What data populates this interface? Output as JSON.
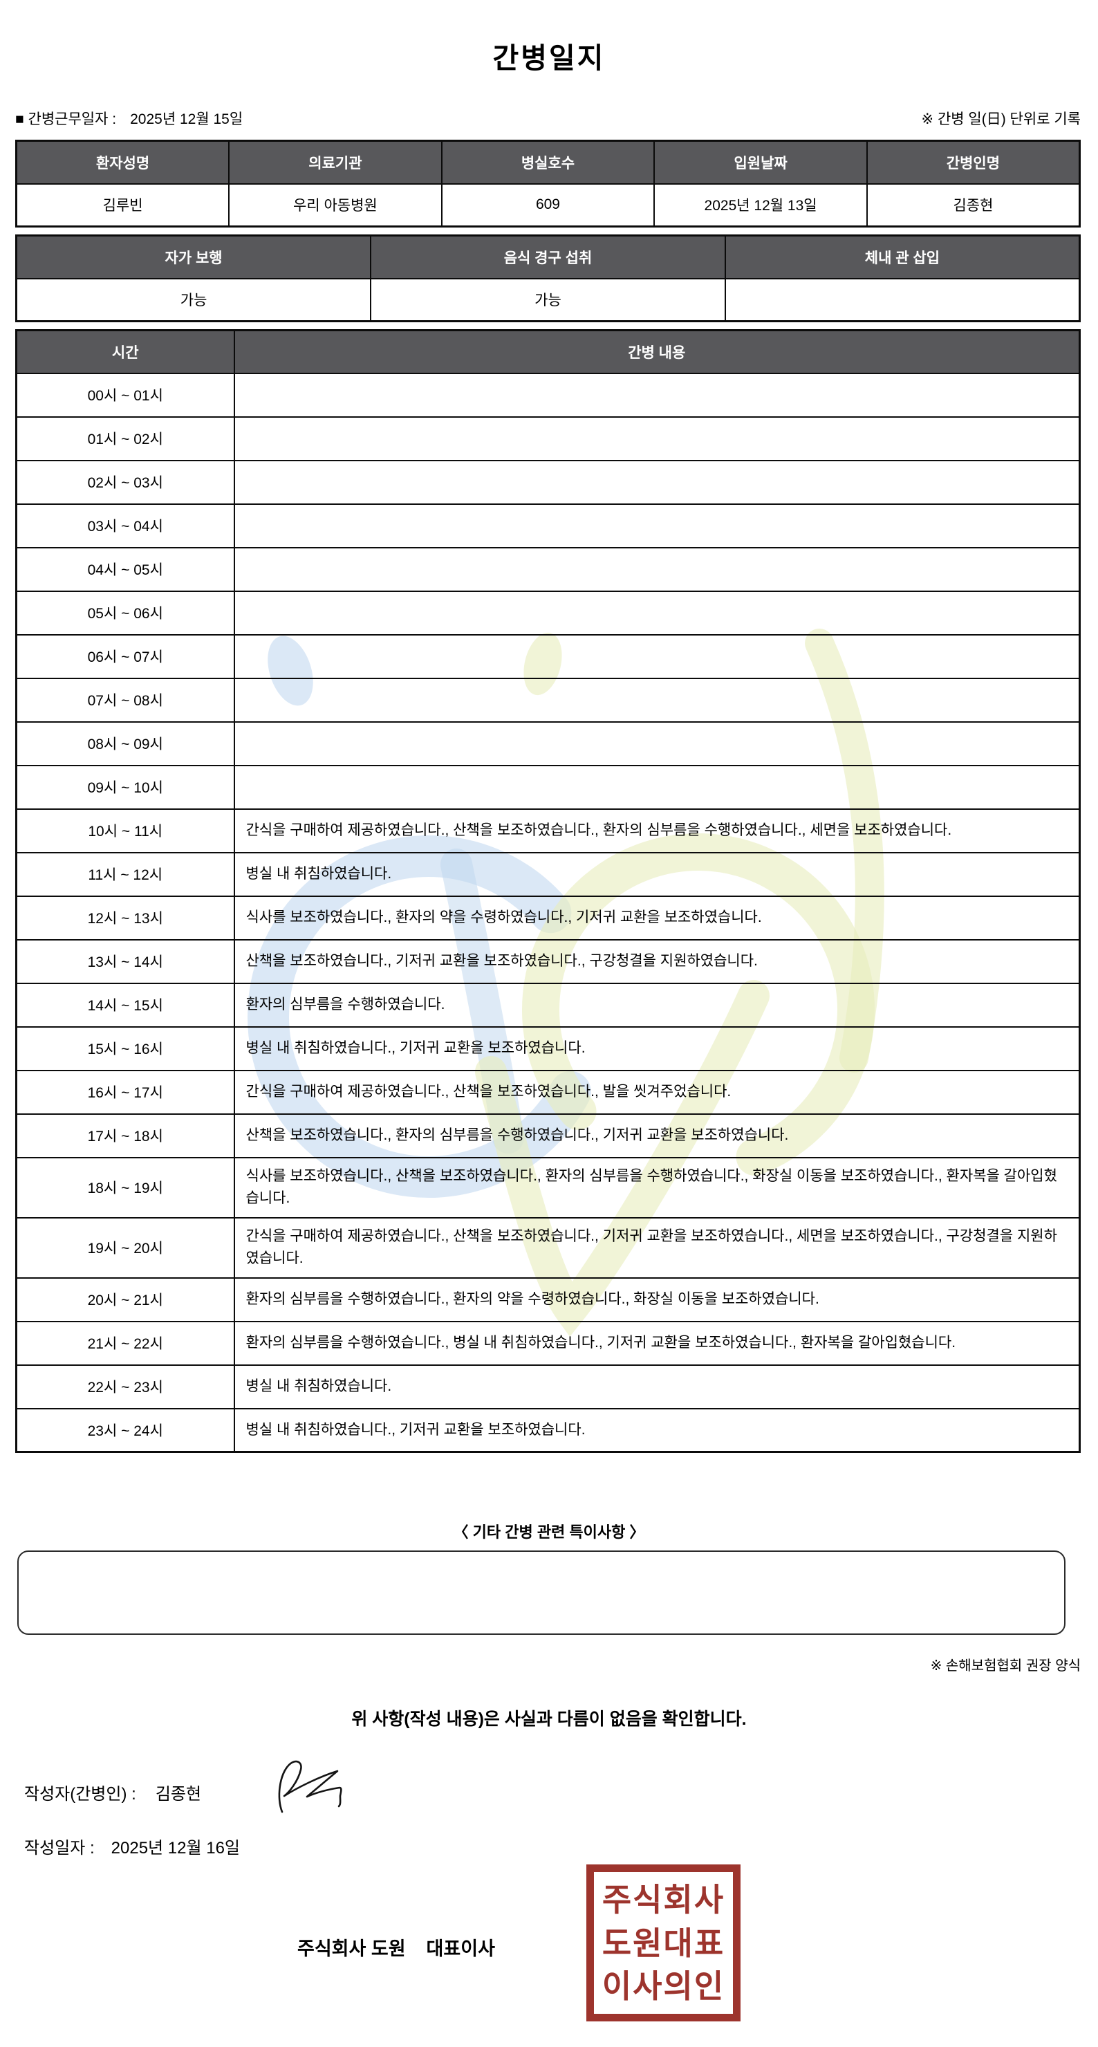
{
  "page": {
    "title": "간병일지"
  },
  "meta": {
    "work_date_label": "■ 간병근무일자  :",
    "work_date": "2025년 12월 15일",
    "unit_note": "※ 간병 일(日) 단위로 기록"
  },
  "patient_info": {
    "headers": [
      "환자성명",
      "의료기관",
      "병실호수",
      "입원날짜",
      "간병인명"
    ],
    "values": [
      "김루빈",
      "우리 아동병원",
      "609",
      "2025년 12월 13일",
      "김종현"
    ]
  },
  "condition_info": {
    "headers": [
      "자가 보행",
      "음식 경구 섭취",
      "체내 관 삽입"
    ],
    "values": [
      "가능",
      "가능",
      ""
    ]
  },
  "care_log": {
    "time_header": "시간",
    "content_header": "간병 내용",
    "rows": [
      {
        "time": "00시 ~ 01시",
        "content": ""
      },
      {
        "time": "01시 ~ 02시",
        "content": ""
      },
      {
        "time": "02시 ~ 03시",
        "content": ""
      },
      {
        "time": "03시 ~ 04시",
        "content": ""
      },
      {
        "time": "04시 ~ 05시",
        "content": ""
      },
      {
        "time": "05시 ~ 06시",
        "content": ""
      },
      {
        "time": "06시 ~ 07시",
        "content": ""
      },
      {
        "time": "07시 ~ 08시",
        "content": ""
      },
      {
        "time": "08시 ~ 09시",
        "content": ""
      },
      {
        "time": "09시 ~ 10시",
        "content": ""
      },
      {
        "time": "10시 ~ 11시",
        "content": "간식을 구매하여 제공하였습니다., 산책을 보조하였습니다., 환자의 심부름을 수행하였습니다., 세면을 보조하였습니다."
      },
      {
        "time": "11시 ~ 12시",
        "content": "병실 내 취침하였습니다."
      },
      {
        "time": "12시 ~ 13시",
        "content": "식사를 보조하였습니다., 환자의 약을 수령하였습니다., 기저귀 교환을 보조하였습니다."
      },
      {
        "time": "13시 ~ 14시",
        "content": "산책을 보조하였습니다., 기저귀 교환을 보조하였습니다., 구강청결을 지원하였습니다."
      },
      {
        "time": "14시 ~ 15시",
        "content": "환자의 심부름을 수행하였습니다."
      },
      {
        "time": "15시 ~ 16시",
        "content": "병실 내 취침하였습니다., 기저귀 교환을 보조하였습니다."
      },
      {
        "time": "16시 ~ 17시",
        "content": "간식을 구매하여 제공하였습니다., 산책을 보조하였습니다., 발을 씻겨주었습니다."
      },
      {
        "time": "17시 ~ 18시",
        "content": "산책을 보조하였습니다., 환자의 심부름을 수행하였습니다., 기저귀 교환을 보조하였습니다."
      },
      {
        "time": "18시 ~ 19시",
        "content": "식사를 보조하였습니다., 산책을 보조하였습니다., 환자의 심부름을 수행하였습니다., 화장실 이동을 보조하였습니다., 환자복을 갈아입혔습니다."
      },
      {
        "time": "19시 ~ 20시",
        "content": "간식을 구매하여 제공하였습니다., 산책을 보조하였습니다., 기저귀 교환을 보조하였습니다., 세면을 보조하였습니다., 구강청결을 지원하였습니다."
      },
      {
        "time": "20시 ~ 21시",
        "content": "환자의 심부름을 수행하였습니다., 환자의 약을 수령하였습니다., 화장실 이동을 보조하였습니다."
      },
      {
        "time": "21시 ~ 22시",
        "content": "환자의 심부름을 수행하였습니다., 병실 내 취침하였습니다., 기저귀 교환을 보조하였습니다., 환자복을 갈아입혔습니다."
      },
      {
        "time": "22시 ~ 23시",
        "content": "병실 내 취침하였습니다."
      },
      {
        "time": "23시 ~ 24시",
        "content": "병실 내 취침하였습니다., 기저귀 교환을 보조하였습니다."
      }
    ]
  },
  "notes": {
    "heading": "〈 기타 간병 관련 특이사항 〉",
    "content": "",
    "form_note": "※ 손해보험협회 권장 양식"
  },
  "confirmation": {
    "statement": "위 사항(작성 내용)은 사실과 다름이 없음을 확인합니다.",
    "writer_label": "작성자(간병인) :",
    "writer_name": "김종현",
    "date_label": "작성일자 :",
    "date_value": "2025년 12월 16일",
    "company_line": "주식회사 도원    대표이사"
  },
  "stamp": {
    "lines": [
      "주식회사",
      "도원대표",
      "이사의인"
    ],
    "color": "#9d342d"
  },
  "colors": {
    "header_bg": "#58585b",
    "table_border": "#0b0b0b",
    "watermark_blue": "#bdd6ee",
    "watermark_green": "#e7edbd"
  }
}
